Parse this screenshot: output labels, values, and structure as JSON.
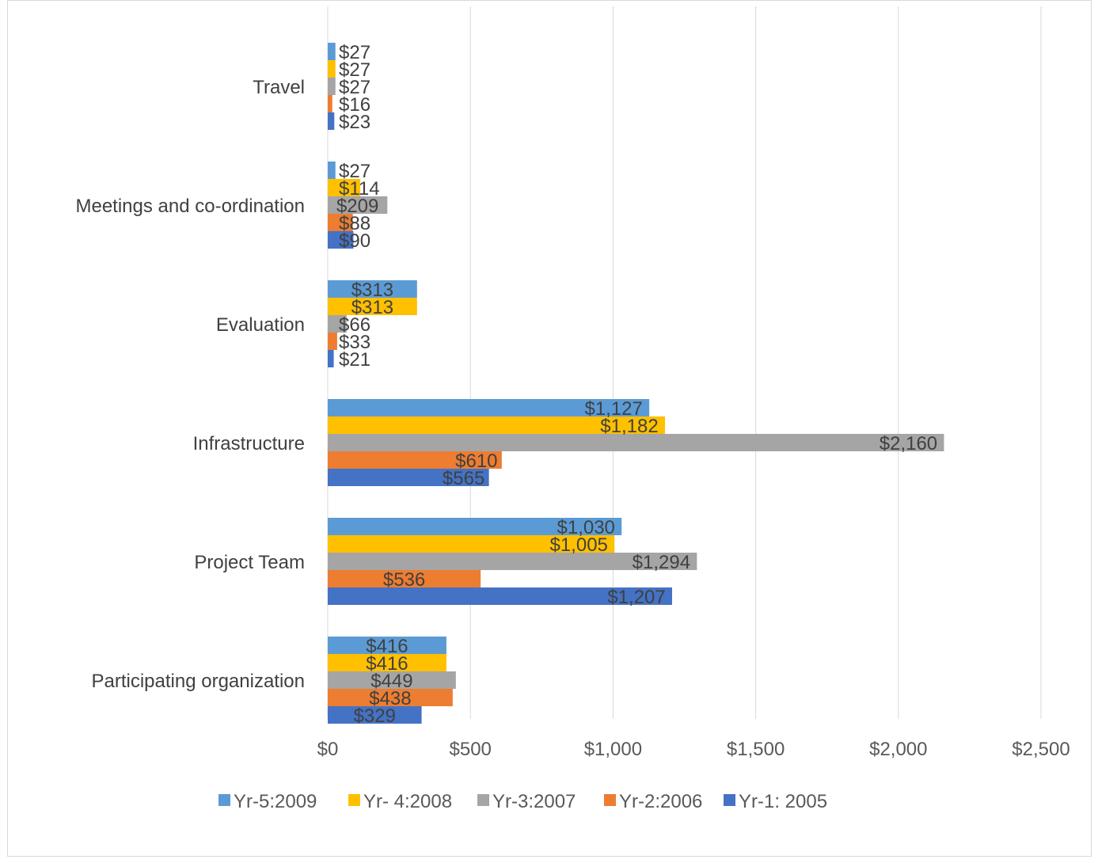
{
  "chart_data": {
    "type": "bar",
    "orientation": "horizontal",
    "title": "",
    "xlabel": "",
    "ylabel": "",
    "categories": [
      "Travel",
      "Meetings and co-ordination",
      "Evaluation",
      "Infrastructure",
      "Project Team",
      "Participating organization"
    ],
    "series": [
      {
        "name": "Yr-5:2009",
        "color": "#5B9BD5",
        "values": [
          27,
          27,
          313,
          1127,
          1030,
          416
        ],
        "labels": [
          "$27",
          "$27",
          "$313",
          "$1,127",
          "$1,030",
          "$416"
        ]
      },
      {
        "name": "Yr- 4:2008",
        "color": "#FFC000",
        "values": [
          27,
          114,
          313,
          1182,
          1005,
          416
        ],
        "labels": [
          "$27",
          "$114",
          "$313",
          "$1,182",
          "$1,005",
          "$416"
        ]
      },
      {
        "name": "Yr-3:2007",
        "color": "#A5A5A5",
        "values": [
          27,
          209,
          66,
          2160,
          1294,
          449
        ],
        "labels": [
          "$27",
          "$209",
          "$66",
          "$2,160",
          "$1,294",
          "$449"
        ]
      },
      {
        "name": "Yr-2:2006",
        "color": "#ED7D31",
        "values": [
          16,
          88,
          33,
          610,
          536,
          438
        ],
        "labels": [
          "$16",
          "$88",
          "$33",
          "$610",
          "$536",
          "$438"
        ]
      },
      {
        "name": "Yr-1: 2005",
        "color": "#4472C4",
        "values": [
          23,
          90,
          21,
          565,
          1207,
          329
        ],
        "labels": [
          "$23",
          "$90",
          "$21",
          "$565",
          "$1,207",
          "$329"
        ]
      }
    ],
    "xlim": [
      0,
      2500
    ],
    "x_ticks": [
      0,
      500,
      1000,
      1500,
      2000,
      2500
    ],
    "x_tick_labels": [
      "$0",
      "$500",
      "$1,000",
      "$1,500",
      "$2,000",
      "$2,500"
    ],
    "grid": "vertical",
    "legend_position": "bottom",
    "gridline_color": "#d9d9d9"
  }
}
